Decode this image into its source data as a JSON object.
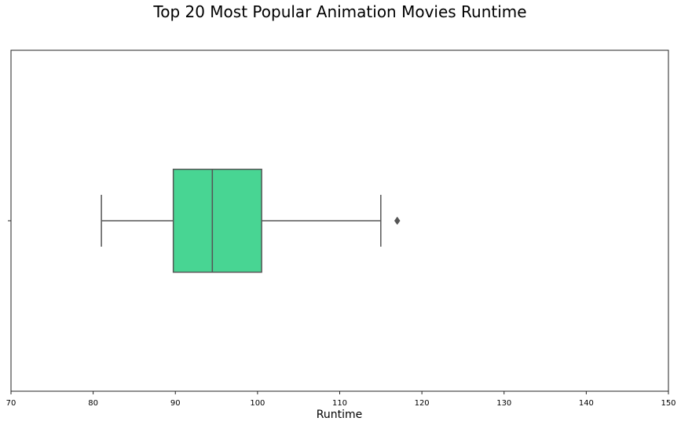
{
  "chart_data": {
    "type": "box",
    "title": "Top 20 Most Popular Animation Movies Runtime",
    "xlabel": "Runtime",
    "ylabel": "",
    "orientation": "horizontal",
    "xlim": [
      70,
      150
    ],
    "x_ticks": [
      "70",
      "80",
      "90",
      "100",
      "110",
      "120",
      "130",
      "140",
      "150"
    ],
    "grid": false,
    "box": {
      "whisker_low": 81,
      "q1": 89.75,
      "median": 94.5,
      "q3": 100.5,
      "whisker_high": 115,
      "outliers": [
        117
      ]
    },
    "colors": {
      "box_fill": "#48d593",
      "line": "#555555"
    }
  }
}
